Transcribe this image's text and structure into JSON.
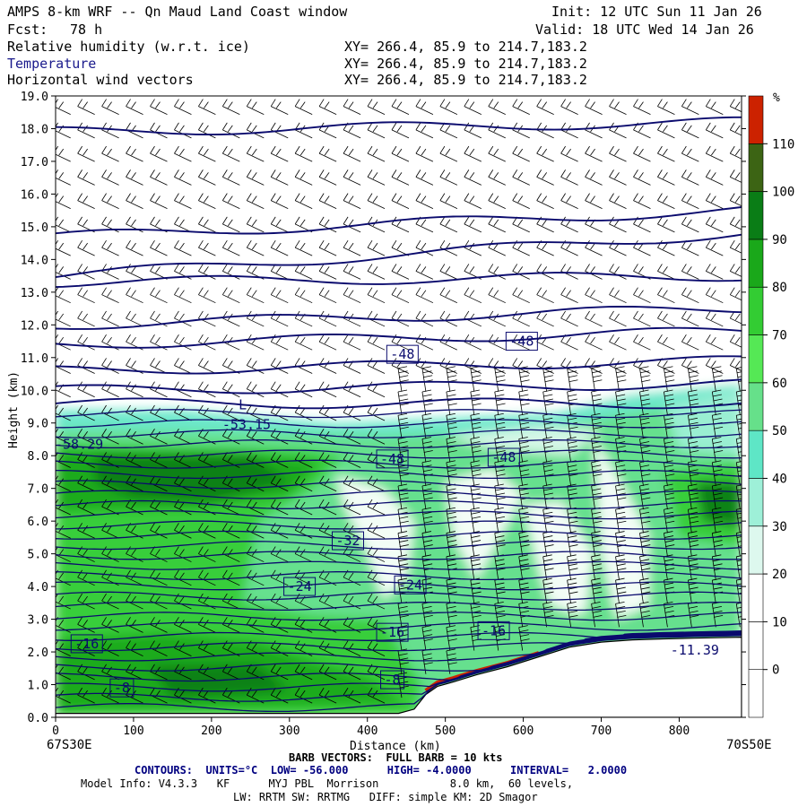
{
  "header": {
    "title": "AMPS 8-km WRF -- Qn Maud Land Coast window",
    "init": "Init: 12 UTC Sun 11 Jan 26",
    "fcst_label": "Fcst:",
    "fcst_value": "78 h",
    "valid": "Valid: 18 UTC Wed 14 Jan 26",
    "fields": [
      {
        "name": "Relative humidity (w.r.t. ice)",
        "xy": "XY= 266.4, 85.9 to 214.7,183.2"
      },
      {
        "name": "Temperature",
        "xy": "XY= 266.4, 85.9 to 214.7,183.2"
      },
      {
        "name": "Horizontal wind vectors",
        "xy": "XY= 266.4, 85.9 to 214.7,183.2"
      }
    ]
  },
  "chart_data": {
    "type": "heatmap",
    "title": "AMPS 8-km WRF -- Qn Maud Land Coast window",
    "xlabel": "Distance (km)",
    "ylabel": "Height (km)",
    "xlim": [
      0,
      880
    ],
    "ylim": [
      0,
      19
    ],
    "x_ticks": [
      0,
      100,
      200,
      300,
      400,
      500,
      600,
      700,
      800
    ],
    "y_ticks": [
      "0.0",
      "1.0",
      "2.0",
      "3.0",
      "4.0",
      "5.0",
      "6.0",
      "7.0",
      "8.0",
      "9.0",
      "10.0",
      "11.0",
      "12.0",
      "13.0",
      "14.0",
      "15.0",
      "16.0",
      "17.0",
      "18.0",
      "19.0"
    ],
    "x_start_label": "67S30E",
    "x_end_label": "70S50E",
    "colorbar": {
      "unit": "%",
      "levels": [
        0,
        10,
        20,
        30,
        40,
        50,
        60,
        70,
        80,
        90,
        100,
        110
      ],
      "colors": [
        "#ffffff",
        "#ffffff",
        "#ffffff",
        "#ddf8ee",
        "#9ef0d8",
        "#5ee6c6",
        "#66e08a",
        "#55e855",
        "#33cc33",
        "#1aa81a",
        "#0a7d16",
        "#3c6414",
        "#cc2200"
      ]
    },
    "terrain": [
      [
        0,
        0.12
      ],
      [
        440,
        0.12
      ],
      [
        460,
        0.25
      ],
      [
        475,
        0.7
      ],
      [
        490,
        0.95
      ],
      [
        510,
        1.08
      ],
      [
        540,
        1.3
      ],
      [
        580,
        1.55
      ],
      [
        620,
        1.85
      ],
      [
        660,
        2.15
      ],
      [
        700,
        2.3
      ],
      [
        740,
        2.37
      ],
      [
        780,
        2.4
      ],
      [
        820,
        2.42
      ],
      [
        880,
        2.45
      ]
    ],
    "contour_labels": [
      {
        "text": "-48",
        "x": 445,
        "y": 11.1
      },
      {
        "text": "-48",
        "x": 598,
        "y": 11.5
      },
      {
        "text": "L",
        "x": 240,
        "y": 9.55
      },
      {
        "text": "-53.15",
        "x": 245,
        "y": 8.95
      },
      {
        "text": "-58.29",
        "x": 30,
        "y": 8.35
      },
      {
        "text": "-48",
        "x": 432,
        "y": 7.9
      },
      {
        "text": "-48",
        "x": 575,
        "y": 7.95
      },
      {
        "text": "-32",
        "x": 375,
        "y": 5.4
      },
      {
        "text": "-24",
        "x": 313,
        "y": 4.0
      },
      {
        "text": "-24",
        "x": 455,
        "y": 4.05
      },
      {
        "text": "-16",
        "x": 40,
        "y": 2.25
      },
      {
        "text": "-16",
        "x": 432,
        "y": 2.6
      },
      {
        "text": "-16",
        "x": 562,
        "y": 2.65
      },
      {
        "text": "-11.39",
        "x": 820,
        "y": 2.05
      },
      {
        "text": "-8",
        "x": 85,
        "y": 0.9
      },
      {
        "text": "-8",
        "x": 432,
        "y": 1.15
      }
    ],
    "contours": {
      "units": "°C",
      "low": -56.0,
      "high": -4.0,
      "interval": 2.0
    }
  },
  "footer": {
    "barb": "BARB VECTORS:  FULL BARB = 10 kts",
    "contours": "CONTOURS:  UNITS=°C  LOW= -56.000      HIGH= -4.0000      INTERVAL=   2.0000",
    "model1": "Model Info: V4.3.3   KF      MYJ PBL  Morrison           8.0 km,  60 levels,",
    "model2": "LW: RRTM SW: RRTMG   DIFF: simple KM: 2D Smagor"
  }
}
